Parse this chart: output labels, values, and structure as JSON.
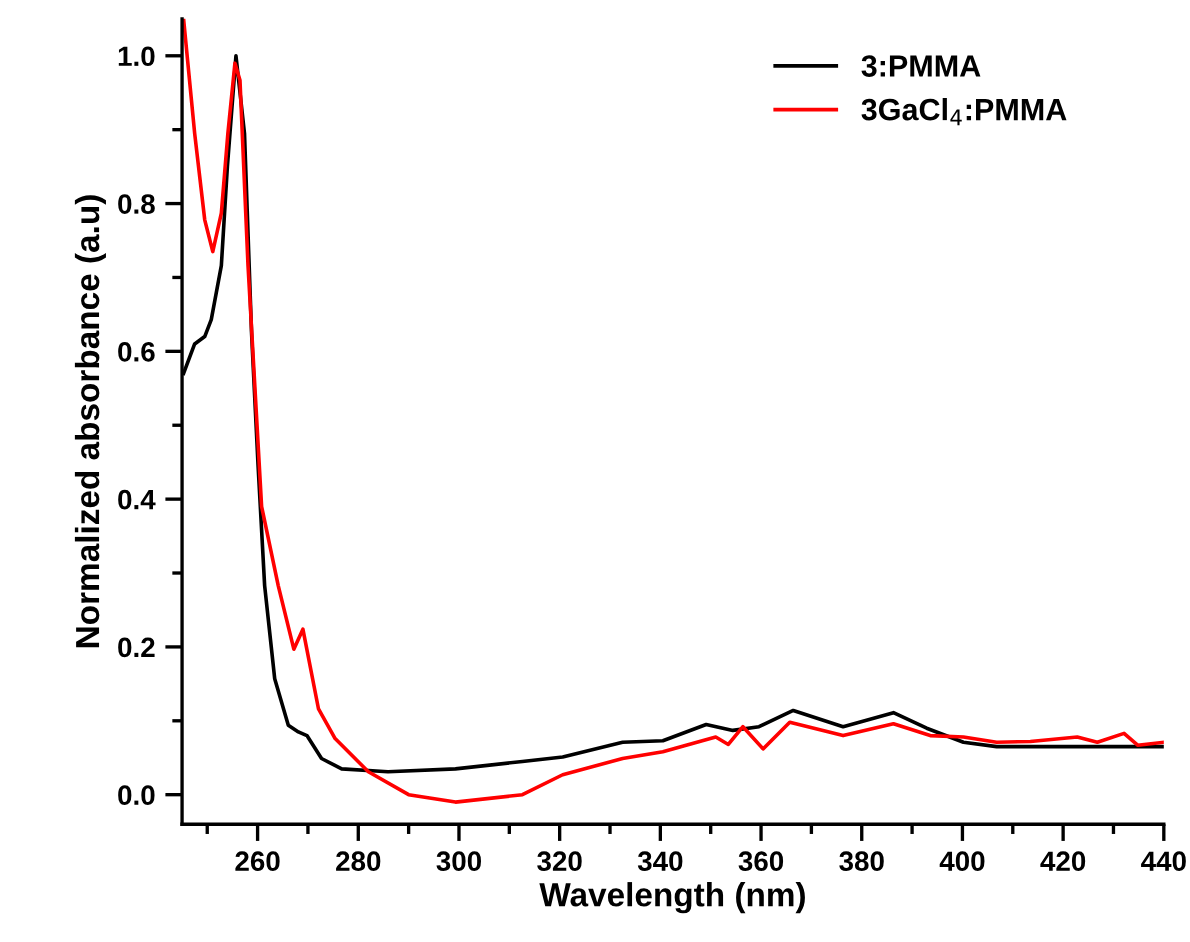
{
  "chart_data": {
    "type": "line",
    "xlabel": "Wavelength (nm)",
    "ylabel": "Normalized absorbance (a.u)",
    "xlim": [
      245,
      440
    ],
    "ylim": [
      -0.04,
      1.05
    ],
    "xticks": [
      260,
      280,
      300,
      320,
      340,
      360,
      380,
      400,
      420,
      440
    ],
    "yticks": [
      {
        "value": 0,
        "label": "0.0"
      },
      0.2,
      0.4,
      0.6,
      0.8,
      {
        "value": 1,
        "label": "1.0"
      }
    ],
    "grid": false,
    "legend": "top right",
    "marker": "none",
    "line_style": "solid",
    "series": [
      {
        "name": "3:PMMA",
        "color": "#000000",
        "x": [
          245.3,
          247.5,
          249.5,
          250.8,
          252.8,
          254,
          255.7,
          257.4,
          258.8,
          260.1,
          261.4,
          263.4,
          266.1,
          268.1,
          269.8,
          272.7,
          276.7,
          285.9,
          299.3,
          312.6,
          320.6,
          332.5,
          340.5,
          349.1,
          354.4,
          359.6,
          366.4,
          376.3,
          386.3,
          392.9,
          400.2,
          406.8,
          440
        ],
        "values": [
          0.57,
          0.61,
          0.62,
          0.643,
          0.716,
          0.85,
          1.0,
          0.895,
          0.625,
          0.445,
          0.283,
          0.157,
          0.094,
          0.085,
          0.08,
          0.049,
          0.035,
          0.031,
          0.035,
          0.045,
          0.051,
          0.071,
          0.073,
          0.095,
          0.087,
          0.092,
          0.114,
          0.092,
          0.111,
          0.09,
          0.071,
          0.065,
          0.065
        ]
      },
      {
        "name": "3GaCl$_{4}$:PMMA",
        "color": "#ff0000",
        "x": [
          245.3,
          247.5,
          249.5,
          251.1,
          252.8,
          254.1,
          255.5,
          256.5,
          258.1,
          260.8,
          264.1,
          267.2,
          269,
          272.1,
          275.4,
          282,
          290,
          299.3,
          312.6,
          320.6,
          332.5,
          340.5,
          351,
          353.5,
          356.4,
          360.4,
          365.7,
          376.3,
          386.3,
          393.6,
          400.2,
          406.8,
          413.5,
          422.8,
          426.8,
          432.1,
          434.8,
          440
        ],
        "values": [
          1.05,
          0.895,
          0.778,
          0.735,
          0.787,
          0.895,
          0.99,
          0.967,
          0.716,
          0.39,
          0.283,
          0.197,
          0.224,
          0.116,
          0.076,
          0.031,
          0.0,
          -0.01,
          0.0,
          0.027,
          0.049,
          0.058,
          0.078,
          0.068,
          0.092,
          0.062,
          0.098,
          0.08,
          0.096,
          0.08,
          0.078,
          0.071,
          0.072,
          0.078,
          0.071,
          0.083,
          0.067,
          0.071
        ]
      }
    ]
  }
}
